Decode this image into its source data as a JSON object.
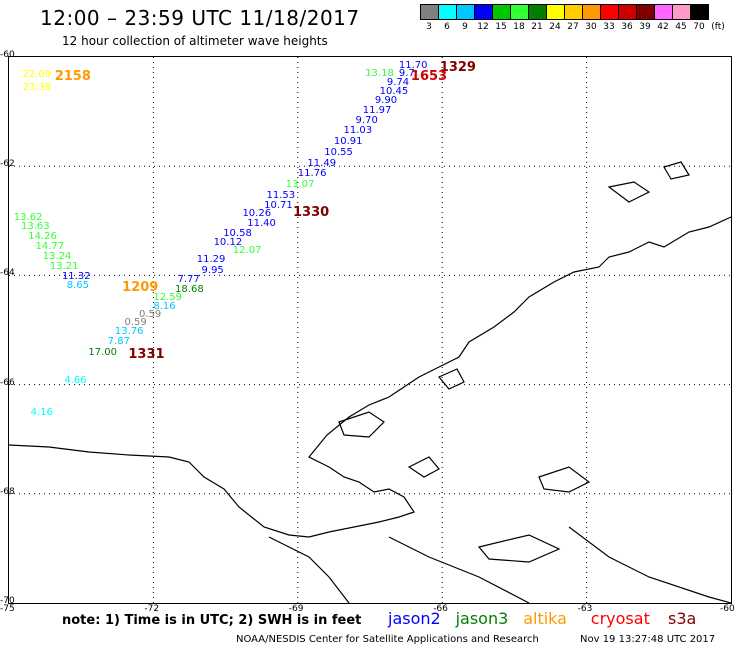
{
  "title": "12:00 – 23:59 UTC 11/18/2017",
  "subtitle": "12 hour collection of altimeter wave heights",
  "legend": {
    "colors": [
      "#808080",
      "#00ffff",
      "#00c8ff",
      "#0000ff",
      "#00c800",
      "#33ff33",
      "#008000",
      "#ffff00",
      "#ffcc00",
      "#ff9900",
      "#ff0000",
      "#cc0000",
      "#800000",
      "#ff66ff",
      "#ff99cc",
      "#000000"
    ],
    "labels": [
      "3",
      "6",
      "9",
      "12",
      "15",
      "18",
      "21",
      "24",
      "27",
      "30",
      "33",
      "36",
      "39",
      "42",
      "45",
      "70"
    ],
    "unit": "(ft)"
  },
  "axes": {
    "lat": [
      "-60",
      "-62",
      "-64",
      "-66",
      "-68",
      "-70"
    ],
    "lon": [
      "-75",
      "-72",
      "-69",
      "-66",
      "-63",
      "-60"
    ]
  },
  "observations": [
    {
      "text": "22.09",
      "lon": -74.72,
      "lat": -60.23,
      "color": "#ffff00"
    },
    {
      "text": "23.38",
      "lon": -74.72,
      "lat": -60.48,
      "color": "#ffff00"
    },
    {
      "text": "2158",
      "lon": -74.05,
      "lat": -60.23,
      "color": "#ff9900",
      "big": true
    },
    {
      "text": "11.70",
      "lon": -66.9,
      "lat": -60.07,
      "color": "#0000ff"
    },
    {
      "text": "1329",
      "lon": -66.05,
      "lat": -60.07,
      "color": "#800000",
      "big": true
    },
    {
      "text": "13.18",
      "lon": -67.6,
      "lat": -60.22,
      "color": "#33ff33"
    },
    {
      "text": "9.7",
      "lon": -66.9,
      "lat": -60.22,
      "color": "#0000ff"
    },
    {
      "text": "1653",
      "lon": -66.65,
      "lat": -60.24,
      "color": "#cc0000",
      "big": true
    },
    {
      "text": "9.74",
      "lon": -67.15,
      "lat": -60.38,
      "color": "#0000ff"
    },
    {
      "text": "10.45",
      "lon": -67.3,
      "lat": -60.55,
      "color": "#0000ff"
    },
    {
      "text": "9.90",
      "lon": -67.4,
      "lat": -60.72,
      "color": "#0000ff"
    },
    {
      "text": "11.97",
      "lon": -67.65,
      "lat": -60.9,
      "color": "#0000ff"
    },
    {
      "text": "9.70",
      "lon": -67.8,
      "lat": -61.08,
      "color": "#0000ff"
    },
    {
      "text": "11.03",
      "lon": -68.05,
      "lat": -61.27,
      "color": "#0000ff"
    },
    {
      "text": "10.91",
      "lon": -68.25,
      "lat": -61.47,
      "color": "#0000ff"
    },
    {
      "text": "10.55",
      "lon": -68.45,
      "lat": -61.67,
      "color": "#0000ff"
    },
    {
      "text": "11.49",
      "lon": -68.8,
      "lat": -61.87,
      "color": "#0000ff"
    },
    {
      "text": "11.76",
      "lon": -69.0,
      "lat": -62.06,
      "color": "#0000ff"
    },
    {
      "text": "13.07",
      "lon": -69.25,
      "lat": -62.25,
      "color": "#33ff33"
    },
    {
      "text": "11.53",
      "lon": -69.65,
      "lat": -62.45,
      "color": "#0000ff"
    },
    {
      "text": "10.71",
      "lon": -69.7,
      "lat": -62.63,
      "color": "#0000ff"
    },
    {
      "text": "1330",
      "lon": -69.1,
      "lat": -62.72,
      "color": "#800000",
      "big": true
    },
    {
      "text": "10.26",
      "lon": -70.15,
      "lat": -62.78,
      "color": "#0000ff"
    },
    {
      "text": "11.40",
      "lon": -70.05,
      "lat": -62.97,
      "color": "#0000ff"
    },
    {
      "text": "10.58",
      "lon": -70.55,
      "lat": -63.15,
      "color": "#0000ff"
    },
    {
      "text": "10.12",
      "lon": -70.75,
      "lat": -63.32,
      "color": "#0000ff"
    },
    {
      "text": "12.07",
      "lon": -70.35,
      "lat": -63.47,
      "color": "#33ff33"
    },
    {
      "text": "11.29",
      "lon": -71.1,
      "lat": -63.62,
      "color": "#0000ff"
    },
    {
      "text": "9.95",
      "lon": -71.0,
      "lat": -63.82,
      "color": "#0000ff"
    },
    {
      "text": "7.77",
      "lon": -71.5,
      "lat": -64.0,
      "color": "#0000ff"
    },
    {
      "text": "18.68",
      "lon": -71.55,
      "lat": -64.17,
      "color": "#008000"
    },
    {
      "text": "12.59",
      "lon": -72.0,
      "lat": -64.32,
      "color": "#33ff33"
    },
    {
      "text": "8.16",
      "lon": -72.0,
      "lat": -64.48,
      "color": "#00c8ff"
    },
    {
      "text": "13.62",
      "lon": -74.9,
      "lat": -62.85,
      "color": "#33ff33"
    },
    {
      "text": "13.63",
      "lon": -74.75,
      "lat": -63.03,
      "color": "#33ff33"
    },
    {
      "text": "14.26",
      "lon": -74.6,
      "lat": -63.2,
      "color": "#33ff33"
    },
    {
      "text": "14.77",
      "lon": -74.45,
      "lat": -63.38,
      "color": "#33ff33"
    },
    {
      "text": "13.24",
      "lon": -74.3,
      "lat": -63.57,
      "color": "#33ff33"
    },
    {
      "text": "13.21",
      "lon": -74.15,
      "lat": -63.75,
      "color": "#33ff33"
    },
    {
      "text": "11.32",
      "lon": -73.9,
      "lat": -63.93,
      "color": "#0000ff"
    },
    {
      "text": "8.65",
      "lon": -73.8,
      "lat": -64.1,
      "color": "#00c8ff"
    },
    {
      "text": "1209",
      "lon": -72.65,
      "lat": -64.1,
      "color": "#ff9900",
      "big": true
    },
    {
      "text": "0.59",
      "lon": -72.3,
      "lat": -64.63,
      "color": "#808080"
    },
    {
      "text": "0.59",
      "lon": -72.6,
      "lat": -64.78,
      "color": "#808080"
    },
    {
      "text": "13.76",
      "lon": -72.8,
      "lat": -64.95,
      "color": "#00c8ff"
    },
    {
      "text": "7.87",
      "lon": -72.95,
      "lat": -65.12,
      "color": "#00c8ff"
    },
    {
      "text": "17.00",
      "lon": -73.35,
      "lat": -65.33,
      "color": "#008000"
    },
    {
      "text": "1331",
      "lon": -72.52,
      "lat": -65.33,
      "color": "#800000",
      "big": true
    },
    {
      "text": "4.66",
      "lon": -73.85,
      "lat": -65.85,
      "color": "#00ffff"
    },
    {
      "text": "4.16",
      "lon": -74.55,
      "lat": -66.43,
      "color": "#00ffff"
    }
  ],
  "note": "note:  1) Time is in UTC;  2) SWH is in feet",
  "satellites": [
    {
      "name": "jason2",
      "color": "#0000ff"
    },
    {
      "name": "jason3",
      "color": "#008000"
    },
    {
      "name": "altika",
      "color": "#ff9900"
    },
    {
      "name": "cryosat",
      "color": "#ff0000"
    },
    {
      "name": "s3a",
      "color": "#800000"
    }
  ],
  "credit": "NOAA/NESDIS Center for Satellite Applications and Research",
  "timestamp": "Nov 19 13:27:48 UTC 2017"
}
